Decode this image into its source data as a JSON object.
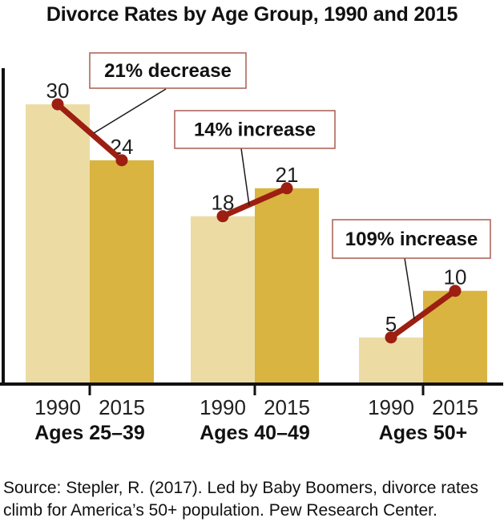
{
  "chart_data": {
    "type": "bar",
    "title": "Divorce Rates by Age Group, 1990 and 2015",
    "series_labels": [
      "1990",
      "2015"
    ],
    "groups": [
      {
        "label": "Ages 25–39",
        "values": {
          "1990": 30,
          "2015": 24
        },
        "annotation": "21% decrease"
      },
      {
        "label": "Ages 40–49",
        "values": {
          "1990": 18,
          "2015": 21
        },
        "annotation": "14% increase"
      },
      {
        "label": "Ages 50+",
        "values": {
          "1990": 5,
          "2015": 10
        },
        "annotation": "109% increase"
      }
    ],
    "ylim": [
      0,
      34
    ],
    "grid": false,
    "legend": "none",
    "colors": {
      "bar_1990": "#ecdca4",
      "bar_2015": "#d9b440",
      "trend_line": "#9c1f11",
      "annotation_border": "#a85d50",
      "axis": "#111111"
    },
    "source": "Source: Stepler, R. (2017). Led by Baby Boomers, divorce rates\nclimb for America’s 50+ population. Pew Research Center."
  }
}
